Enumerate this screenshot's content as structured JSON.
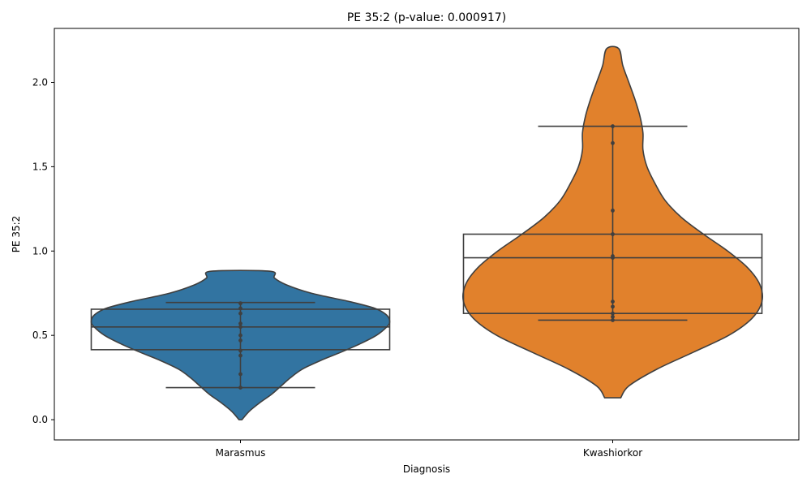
{
  "chart_data": {
    "type": "violin",
    "title": "PE 35:2 (p-value: 0.000917)",
    "xlabel": "Diagnosis",
    "ylabel": "PE 35:2",
    "ylim": [
      -0.12,
      2.32
    ],
    "yticks": [
      0.0,
      0.5,
      1.0,
      1.5,
      2.0
    ],
    "ytick_labels": [
      "0.0",
      "0.5",
      "1.0",
      "1.5",
      "2.0"
    ],
    "categories": [
      "Marasmus",
      "Kwashiorkor"
    ],
    "colors": [
      "#3274a1",
      "#e1812c"
    ],
    "edge_color": "#3f3f3f",
    "grid": false,
    "legend": "none",
    "groups": [
      {
        "category": "Marasmus",
        "density_profile": [
          [
            0.0,
            0.02
          ],
          [
            0.05,
            0.12
          ],
          [
            0.1,
            0.26
          ],
          [
            0.15,
            0.42
          ],
          [
            0.2,
            0.55
          ],
          [
            0.25,
            0.68
          ],
          [
            0.3,
            0.84
          ],
          [
            0.35,
            1.08
          ],
          [
            0.4,
            1.36
          ],
          [
            0.45,
            1.62
          ],
          [
            0.5,
            1.84
          ],
          [
            0.55,
            1.98
          ],
          [
            0.58,
            2.02
          ],
          [
            0.62,
            1.98
          ],
          [
            0.66,
            1.82
          ],
          [
            0.7,
            1.48
          ],
          [
            0.75,
            0.96
          ],
          [
            0.8,
            0.62
          ],
          [
            0.84,
            0.46
          ],
          [
            0.88,
            0.4
          ]
        ],
        "box": {
          "q1": 0.415,
          "median": 0.55,
          "q3": 0.655,
          "whisker_low": 0.19,
          "whisker_high": 0.695
        },
        "points": [
          0.19,
          0.27,
          0.38,
          0.41,
          0.47,
          0.5,
          0.55,
          0.57,
          0.63,
          0.66,
          0.69
        ]
      },
      {
        "category": "Kwashiorkor",
        "density_profile": [
          [
            0.13,
            0.08
          ],
          [
            0.2,
            0.16
          ],
          [
            0.3,
            0.44
          ],
          [
            0.4,
            0.8
          ],
          [
            0.5,
            1.15
          ],
          [
            0.6,
            1.38
          ],
          [
            0.7,
            1.48
          ],
          [
            0.8,
            1.46
          ],
          [
            0.9,
            1.34
          ],
          [
            1.0,
            1.14
          ],
          [
            1.1,
            0.9
          ],
          [
            1.2,
            0.68
          ],
          [
            1.3,
            0.52
          ],
          [
            1.4,
            0.42
          ],
          [
            1.5,
            0.34
          ],
          [
            1.6,
            0.3
          ],
          [
            1.7,
            0.3
          ],
          [
            1.8,
            0.27
          ],
          [
            1.9,
            0.22
          ],
          [
            2.0,
            0.16
          ],
          [
            2.1,
            0.1
          ],
          [
            2.2,
            0.06
          ]
        ],
        "box": {
          "q1": 0.63,
          "median": 0.96,
          "q3": 1.1,
          "whisker_low": 0.59,
          "whisker_high": 1.74
        },
        "points": [
          0.59,
          0.61,
          0.63,
          0.67,
          0.7,
          0.96,
          0.97,
          1.1,
          1.24,
          1.64,
          1.74
        ]
      }
    ]
  }
}
